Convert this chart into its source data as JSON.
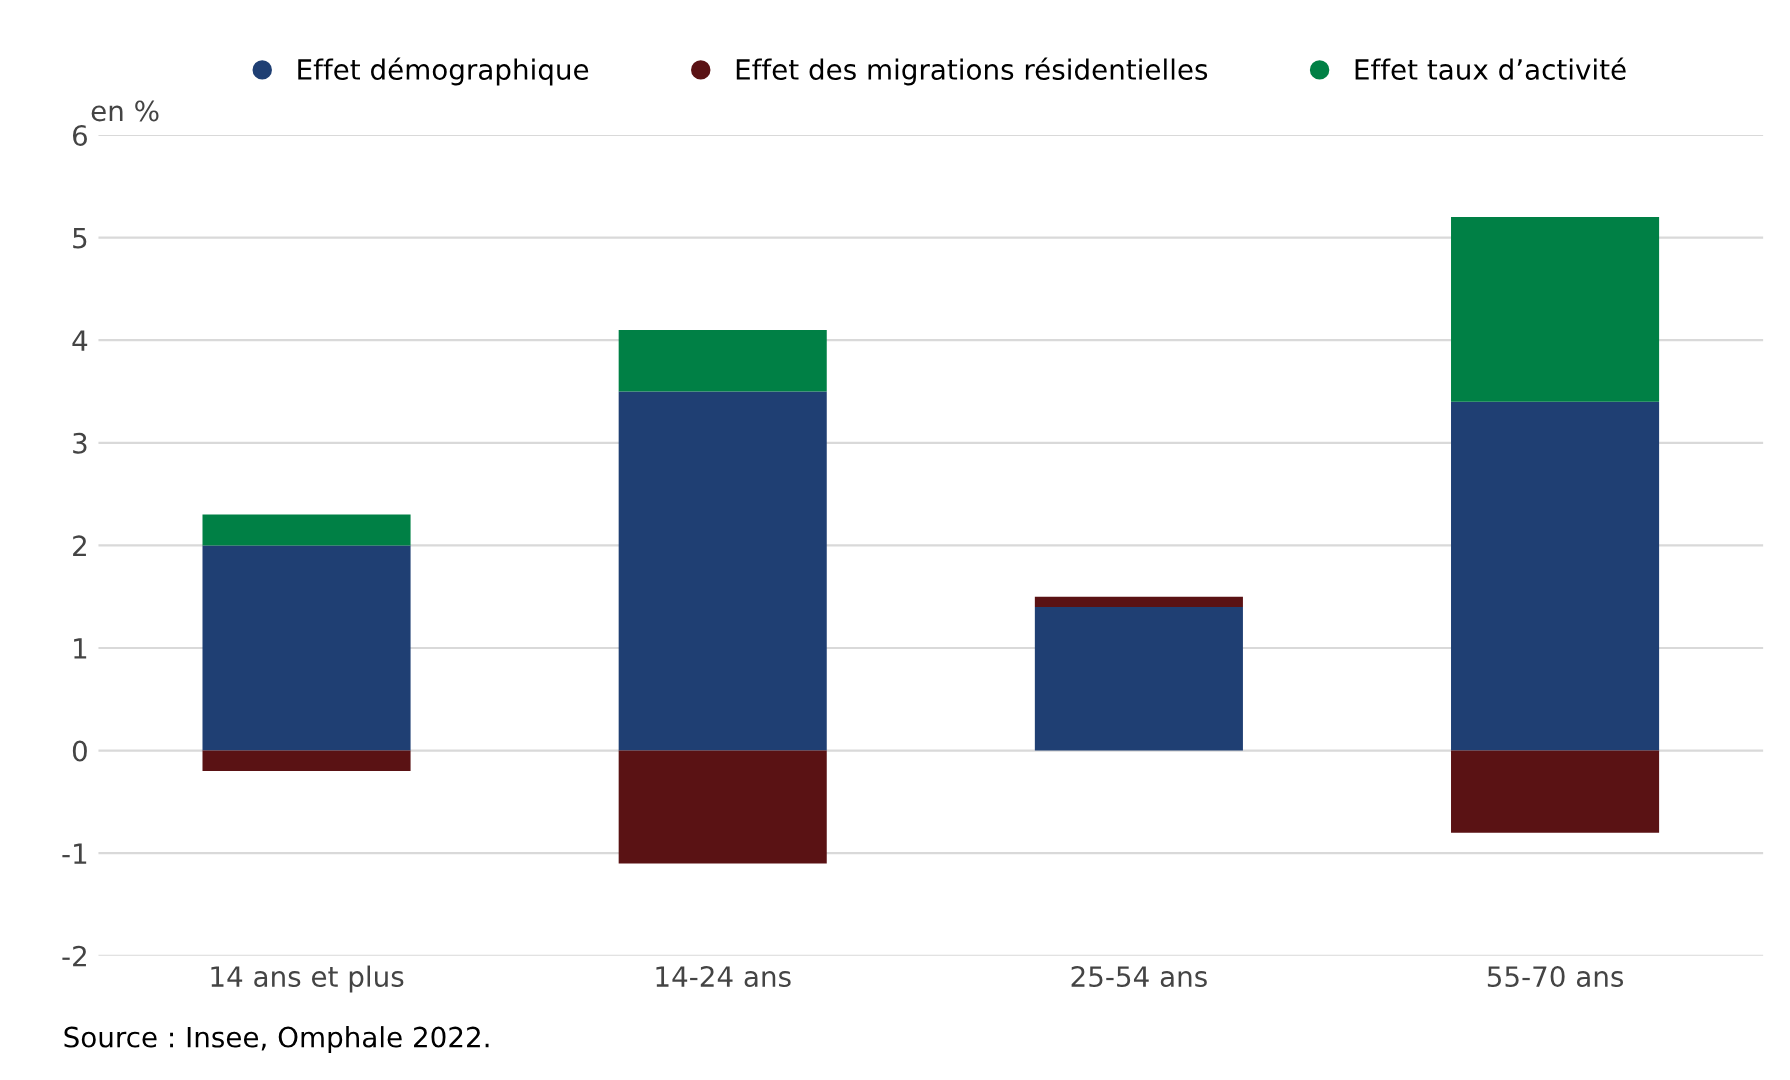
{
  "chart_data": {
    "type": "bar",
    "stacked": true,
    "ylabel": "en %",
    "categories": [
      "14 ans et plus",
      "14-24 ans",
      "25-54 ans",
      "55-70 ans"
    ],
    "series": [
      {
        "name": "Effet démographique",
        "color": "#1f3f73",
        "values": [
          2.0,
          3.5,
          1.4,
          3.4
        ]
      },
      {
        "name": "Effet des migrations résidentielles",
        "color": "#5a1214",
        "values": [
          -0.2,
          -1.1,
          0.1,
          -0.8
        ]
      },
      {
        "name": "Effet taux d’activité",
        "color": "#008045",
        "values": [
          0.3,
          0.6,
          0.0,
          1.8
        ]
      }
    ],
    "ylim": [
      -2,
      6
    ],
    "yticks": [
      -2,
      -1,
      0,
      1,
      2,
      3,
      4,
      5,
      6
    ],
    "grid": "y",
    "legend": "top",
    "annotations": [
      "Source : Insee, Omphale 2022."
    ]
  }
}
